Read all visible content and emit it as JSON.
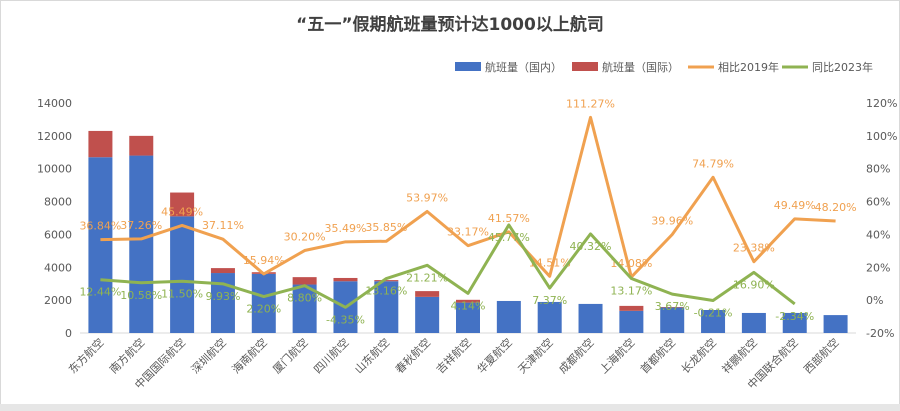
{
  "chart_data": {
    "type": "bar",
    "title": "“五一”假期航班量预计达1000以上航司",
    "categories": [
      "东方航空",
      "南方航空",
      "中国国际航空",
      "深圳航空",
      "海南航空",
      "厦门航空",
      "四川航空",
      "山东航空",
      "春秋航空",
      "吉祥航空",
      "华夏航空",
      "天津航空",
      "成都航空",
      "上海航空",
      "首都航空",
      "长龙航空",
      "祥鹏航空",
      "中国联合航空",
      "西部航空"
    ],
    "series": [
      {
        "name": "航班量（国内）",
        "kind": "bar",
        "stack": "flights",
        "axis": "left",
        "color": "#4472c4",
        "values": [
          10700,
          10800,
          7100,
          3650,
          3600,
          2950,
          3150,
          3150,
          2200,
          1850,
          1950,
          1890,
          1770,
          1350,
          1550,
          1400,
          1220,
          1220,
          1090
        ]
      },
      {
        "name": "航班量（国际）",
        "kind": "bar",
        "stack": "flights",
        "axis": "left",
        "color": "#c0504d",
        "values": [
          1600,
          1200,
          1450,
          300,
          100,
          450,
          200,
          70,
          350,
          170,
          0,
          0,
          0,
          300,
          30,
          0,
          0,
          0,
          0
        ]
      },
      {
        "name": "相比2019年",
        "kind": "line",
        "axis": "right",
        "color": "#f0a150",
        "values": [
          36.84,
          37.26,
          45.49,
          37.11,
          15.94,
          30.2,
          35.49,
          35.85,
          53.97,
          33.17,
          41.57,
          14.51,
          111.27,
          14.08,
          39.96,
          74.79,
          23.38,
          49.49,
          48.2
        ]
      },
      {
        "name": "同比2023年",
        "kind": "line",
        "axis": "right",
        "color": "#8fb352",
        "values": [
          12.44,
          10.58,
          11.5,
          9.93,
          2.2,
          8.8,
          -4.35,
          13.16,
          21.21,
          4.14,
          45.77,
          7.37,
          40.32,
          13.17,
          3.67,
          -0.21,
          16.9,
          -2.34,
          null
        ]
      }
    ],
    "ylim_left": [
      0,
      14000
    ],
    "yticks_left": [
      "0",
      "2000",
      "4000",
      "6000",
      "8000",
      "10000",
      "12000",
      "14000"
    ],
    "ylim_right": [
      -20,
      120
    ],
    "yticks_right": [
      "-20%",
      "0%",
      "20%",
      "40%",
      "60%",
      "80%",
      "100%",
      "120%"
    ],
    "legend": "top-right",
    "grid": false
  }
}
